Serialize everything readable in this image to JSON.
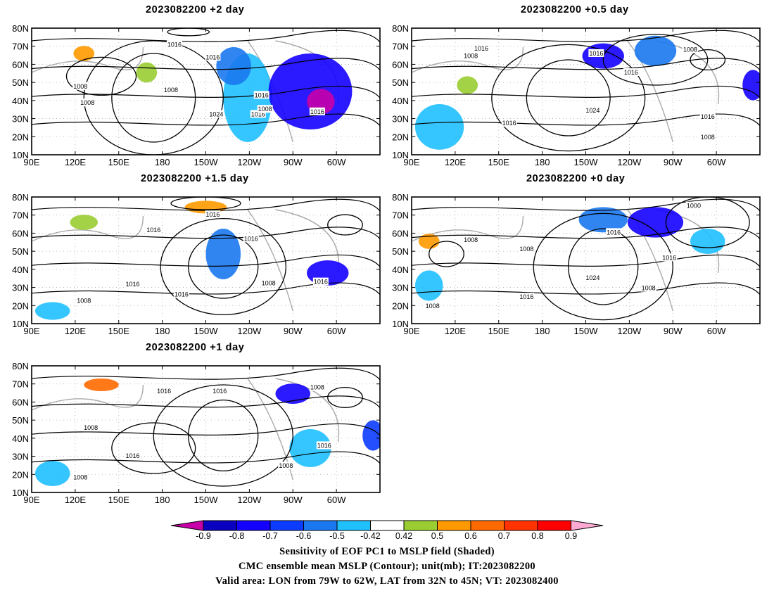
{
  "panels": [
    {
      "title": "2023082200 +2 day"
    },
    {
      "title": "2023082200 +0.5 day"
    },
    {
      "title": "2023082200 +1.5 day"
    },
    {
      "title": "2023082200 +0 day"
    },
    {
      "title": "2023082200 +1 day"
    }
  ],
  "axes": {
    "lat_labels": [
      "80N",
      "70N",
      "60N",
      "50N",
      "40N",
      "30N",
      "20N",
      "10N"
    ],
    "lon_labels": [
      "90E",
      "120E",
      "150E",
      "180",
      "150W",
      "120W",
      "90W",
      "60W"
    ]
  },
  "contours": [
    {
      "panel": 0,
      "labels": [
        "1016",
        "1016",
        "1008",
        "1016",
        "1008",
        "1008",
        "1024",
        "1016",
        "1008",
        "1016"
      ]
    },
    {
      "panel": 1,
      "labels": [
        "1016",
        "1008",
        "1016",
        "1008",
        "1016",
        "1024",
        "1016",
        "1016",
        "1008"
      ]
    },
    {
      "panel": 2,
      "labels": [
        "1016",
        "1016",
        "1016",
        "1016",
        "1008",
        "1016",
        "1016",
        "1008"
      ]
    },
    {
      "panel": 3,
      "labels": [
        "1000",
        "1016",
        "1008",
        "1008",
        "1016",
        "1024",
        "1008",
        "1016",
        "1008"
      ]
    },
    {
      "panel": 4,
      "labels": [
        "1016",
        "1016",
        "1008",
        "1008",
        "1016",
        "1016",
        "1008",
        "1008"
      ]
    }
  ],
  "colorbar": {
    "labels": [
      "-0.9",
      "-0.8",
      "-0.7",
      "-0.6",
      "-0.5",
      "-0.42",
      "0.42",
      "0.5",
      "0.6",
      "0.7",
      "0.8",
      "0.9"
    ],
    "colors": [
      "#0a00c0",
      "#1400ff",
      "#0b3cff",
      "#1a78f0",
      "#20c0ff",
      "#ffffff",
      "#9acd32",
      "#ff9900",
      "#ff6a00",
      "#ff3300",
      "#ff0000"
    ],
    "under_color": "#c800a8",
    "over_color": "#ffaad4"
  },
  "captions": {
    "line1": "Sensitivity of EOF PC1 to MSLP field (Shaded)",
    "line2": "CMC ensemble mean MSLP (Contour); unit(mb); IT:2023082200",
    "line3": "Valid area: LON from 79W to 62W, LAT from 32N to 45N; VT: 2023082400"
  }
}
